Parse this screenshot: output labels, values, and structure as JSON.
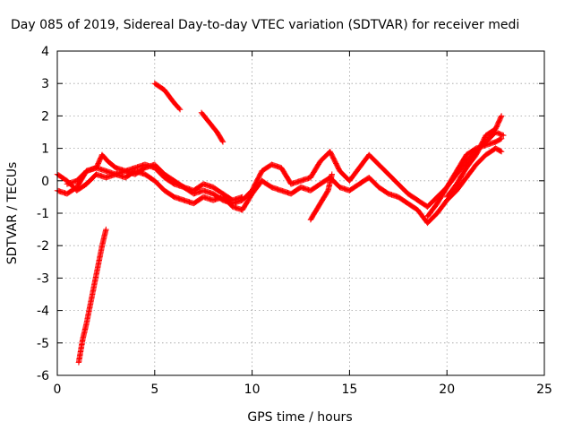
{
  "chart_data": {
    "type": "scatter",
    "title": "Day 085 of 2019, Sidereal Day-to-day VTEC variation (SDTVAR) for receiver medi",
    "xlabel": "GPS time / hours",
    "ylabel": "SDTVAR / TECUs",
    "xlim": [
      0,
      25
    ],
    "ylim": [
      -6,
      4
    ],
    "xticks": [
      0,
      5,
      10,
      15,
      20,
      25
    ],
    "yticks": [
      -6,
      -5,
      -4,
      -3,
      -2,
      -1,
      0,
      1,
      2,
      3,
      4
    ],
    "grid": true,
    "marker": "+",
    "series": [
      {
        "name": "SDTVAR",
        "color": "#ff0000",
        "tracks": [
          {
            "x": [
              0.0,
              0.5,
              1.0,
              1.5,
              2.0,
              2.5,
              3.0,
              3.5,
              4.0,
              4.5,
              5.0,
              5.5,
              6.0,
              6.5,
              7.0,
              7.5,
              8.0,
              8.5,
              9.0,
              9.5,
              10.0,
              10.5,
              11.0,
              11.5,
              12.0,
              12.5,
              13.0,
              13.5,
              14.0,
              14.5,
              15.0,
              15.5,
              16.0,
              16.5,
              17.0,
              17.5,
              18.0,
              18.5,
              19.0,
              19.5,
              20.0,
              20.5,
              21.0,
              21.5,
              22.0,
              22.5,
              22.8
            ],
            "y": [
              0.2,
              0.0,
              -0.3,
              -0.1,
              0.2,
              0.1,
              0.2,
              0.3,
              0.2,
              0.4,
              0.5,
              0.2,
              0.0,
              -0.2,
              -0.4,
              -0.3,
              -0.4,
              -0.6,
              -0.7,
              -0.6,
              -0.3,
              0.3,
              0.5,
              0.4,
              -0.1,
              0.0,
              0.1,
              0.6,
              0.9,
              0.3,
              0.0,
              0.4,
              0.8,
              0.5,
              0.2,
              -0.1,
              -0.4,
              -0.6,
              -0.8,
              -0.5,
              -0.2,
              0.3,
              0.8,
              1.0,
              1.1,
              1.2,
              1.3
            ]
          },
          {
            "x": [
              0.0,
              0.5,
              1.0,
              1.5,
              2.0,
              2.5,
              3.0,
              3.5,
              4.0,
              4.5,
              5.0,
              5.5,
              6.0,
              6.5,
              7.0,
              7.5,
              8.0,
              8.5,
              9.0,
              9.5,
              10.0,
              10.5,
              11.0,
              11.5,
              12.0,
              12.5,
              13.0,
              13.5,
              14.0,
              14.5,
              15.0,
              15.5,
              16.0,
              16.5,
              17.0,
              17.5,
              18.0,
              18.5,
              19.0,
              19.5,
              20.0,
              20.5,
              21.0,
              21.5,
              22.0,
              22.5,
              22.8
            ],
            "y": [
              -0.3,
              -0.4,
              -0.2,
              0.3,
              0.4,
              0.3,
              0.2,
              0.1,
              0.3,
              0.2,
              0.0,
              -0.3,
              -0.5,
              -0.6,
              -0.7,
              -0.5,
              -0.6,
              -0.5,
              -0.8,
              -0.9,
              -0.4,
              0.0,
              -0.2,
              -0.3,
              -0.4,
              -0.2,
              -0.3,
              -0.1,
              0.1,
              -0.2,
              -0.3,
              -0.1,
              0.1,
              -0.2,
              -0.4,
              -0.5,
              -0.7,
              -0.9,
              -1.3,
              -1.0,
              -0.6,
              -0.3,
              0.1,
              0.5,
              0.8,
              1.0,
              0.9
            ]
          },
          {
            "x": [
              0.5,
              1.0,
              1.5,
              2.0,
              2.3,
              2.6,
              3.0,
              3.5,
              4.0,
              4.5,
              5.0,
              5.5,
              6.0,
              6.5,
              7.0,
              7.5,
              8.0,
              8.5,
              9.0,
              9.5
            ],
            "y": [
              -0.1,
              0.0,
              0.3,
              0.4,
              0.8,
              0.6,
              0.4,
              0.3,
              0.4,
              0.5,
              0.4,
              0.1,
              -0.1,
              -0.2,
              -0.3,
              -0.1,
              -0.2,
              -0.4,
              -0.6,
              -0.5
            ]
          },
          {
            "x": [
              20.0,
              20.5,
              21.0,
              21.5,
              22.0,
              22.5,
              22.8
            ],
            "y": [
              -0.5,
              -0.1,
              0.4,
              0.8,
              1.4,
              1.6,
              2.0
            ]
          },
          {
            "x": [
              19.0,
              19.5,
              20.0,
              20.5,
              21.0,
              21.5,
              22.0,
              22.5,
              22.9
            ],
            "y": [
              -1.1,
              -0.7,
              -0.2,
              0.2,
              0.6,
              0.9,
              1.2,
              1.5,
              1.4
            ]
          },
          {
            "x": [
              1.1,
              1.3,
              1.5,
              1.7,
              1.9,
              2.1,
              2.3,
              2.5
            ],
            "y": [
              -5.6,
              -4.9,
              -4.4,
              -3.8,
              -3.2,
              -2.6,
              -2.0,
              -1.5
            ]
          },
          {
            "x": [
              5.0,
              5.5,
              6.0,
              6.3
            ],
            "y": [
              3.0,
              2.8,
              2.4,
              2.2
            ]
          },
          {
            "x": [
              7.4,
              7.8,
              8.2,
              8.5
            ],
            "y": [
              2.1,
              1.8,
              1.5,
              1.2
            ]
          },
          {
            "x": [
              13.0,
              13.3,
              13.6,
              13.9,
              14.1
            ],
            "y": [
              -1.2,
              -0.9,
              -0.6,
              -0.3,
              0.2
            ]
          }
        ]
      }
    ]
  }
}
